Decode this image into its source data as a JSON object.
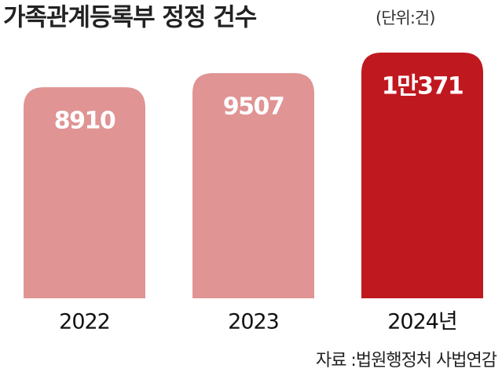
{
  "chart_data": {
    "type": "bar",
    "title": "가족관계등록부 정정 건수",
    "subtitle": "(단위:건)",
    "categories": [
      "2022",
      "2023",
      "2024년"
    ],
    "values": [
      8910,
      9507,
      10371
    ],
    "value_labels": [
      "8910",
      "9507",
      "1만371"
    ],
    "colors": [
      "#e09494",
      "#e09494",
      "#c0181f"
    ],
    "source": "자료 :법원행정처 사법연감"
  }
}
